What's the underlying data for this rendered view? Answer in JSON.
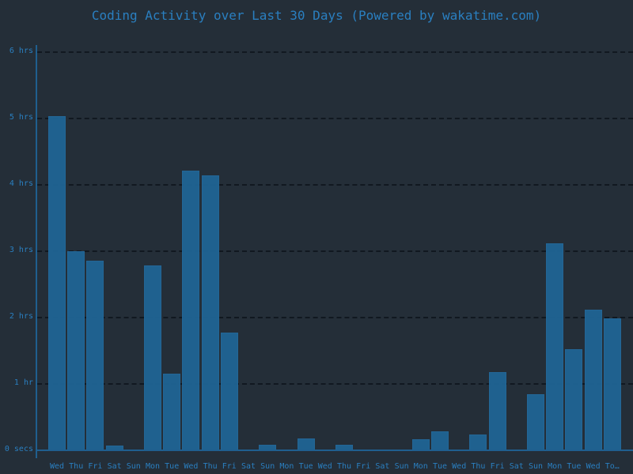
{
  "chart_data": {
    "type": "bar",
    "title": "Coding Activity over Last 30 Days (Powered by wakatime.com)",
    "xlabel": "",
    "ylabel": "",
    "ylim": [
      0,
      6
    ],
    "y_unit": "hours",
    "yticks": [
      {
        "value": 0,
        "label": "0 secs"
      },
      {
        "value": 1,
        "label": "1 hr"
      },
      {
        "value": 2,
        "label": "2 hrs"
      },
      {
        "value": 3,
        "label": "3 hrs"
      },
      {
        "value": 4,
        "label": "4 hrs"
      },
      {
        "value": 5,
        "label": "5 hrs"
      },
      {
        "value": 6,
        "label": "6 hrs"
      }
    ],
    "grid": true,
    "legend": null,
    "categories": [
      "Wed",
      "Thu",
      "Fri",
      "Sat",
      "Sun",
      "Mon",
      "Tue",
      "Wed",
      "Thu",
      "Fri",
      "Sat",
      "Sun",
      "Mon",
      "Tue",
      "Wed",
      "Thu",
      "Fri",
      "Sat",
      "Sun",
      "Mon",
      "Tue",
      "Wed",
      "Thu",
      "Fri",
      "Sat",
      "Sun",
      "Mon",
      "Tue",
      "Wed",
      "To…"
    ],
    "values": [
      5.04,
      3.0,
      2.86,
      0.07,
      0.0,
      2.78,
      1.15,
      4.21,
      4.14,
      1.77,
      0.0,
      0.08,
      0.0,
      0.18,
      0.0,
      0.08,
      0.0,
      0.0,
      0.0,
      0.17,
      0.29,
      0.0,
      0.24,
      1.18,
      0.0,
      0.85,
      3.12,
      1.52,
      2.12,
      1.99
    ]
  },
  "colors": {
    "background": "#242e38",
    "bar": "#1f6494",
    "text": "#2a7fc0",
    "axis": "#1f5f8f"
  }
}
